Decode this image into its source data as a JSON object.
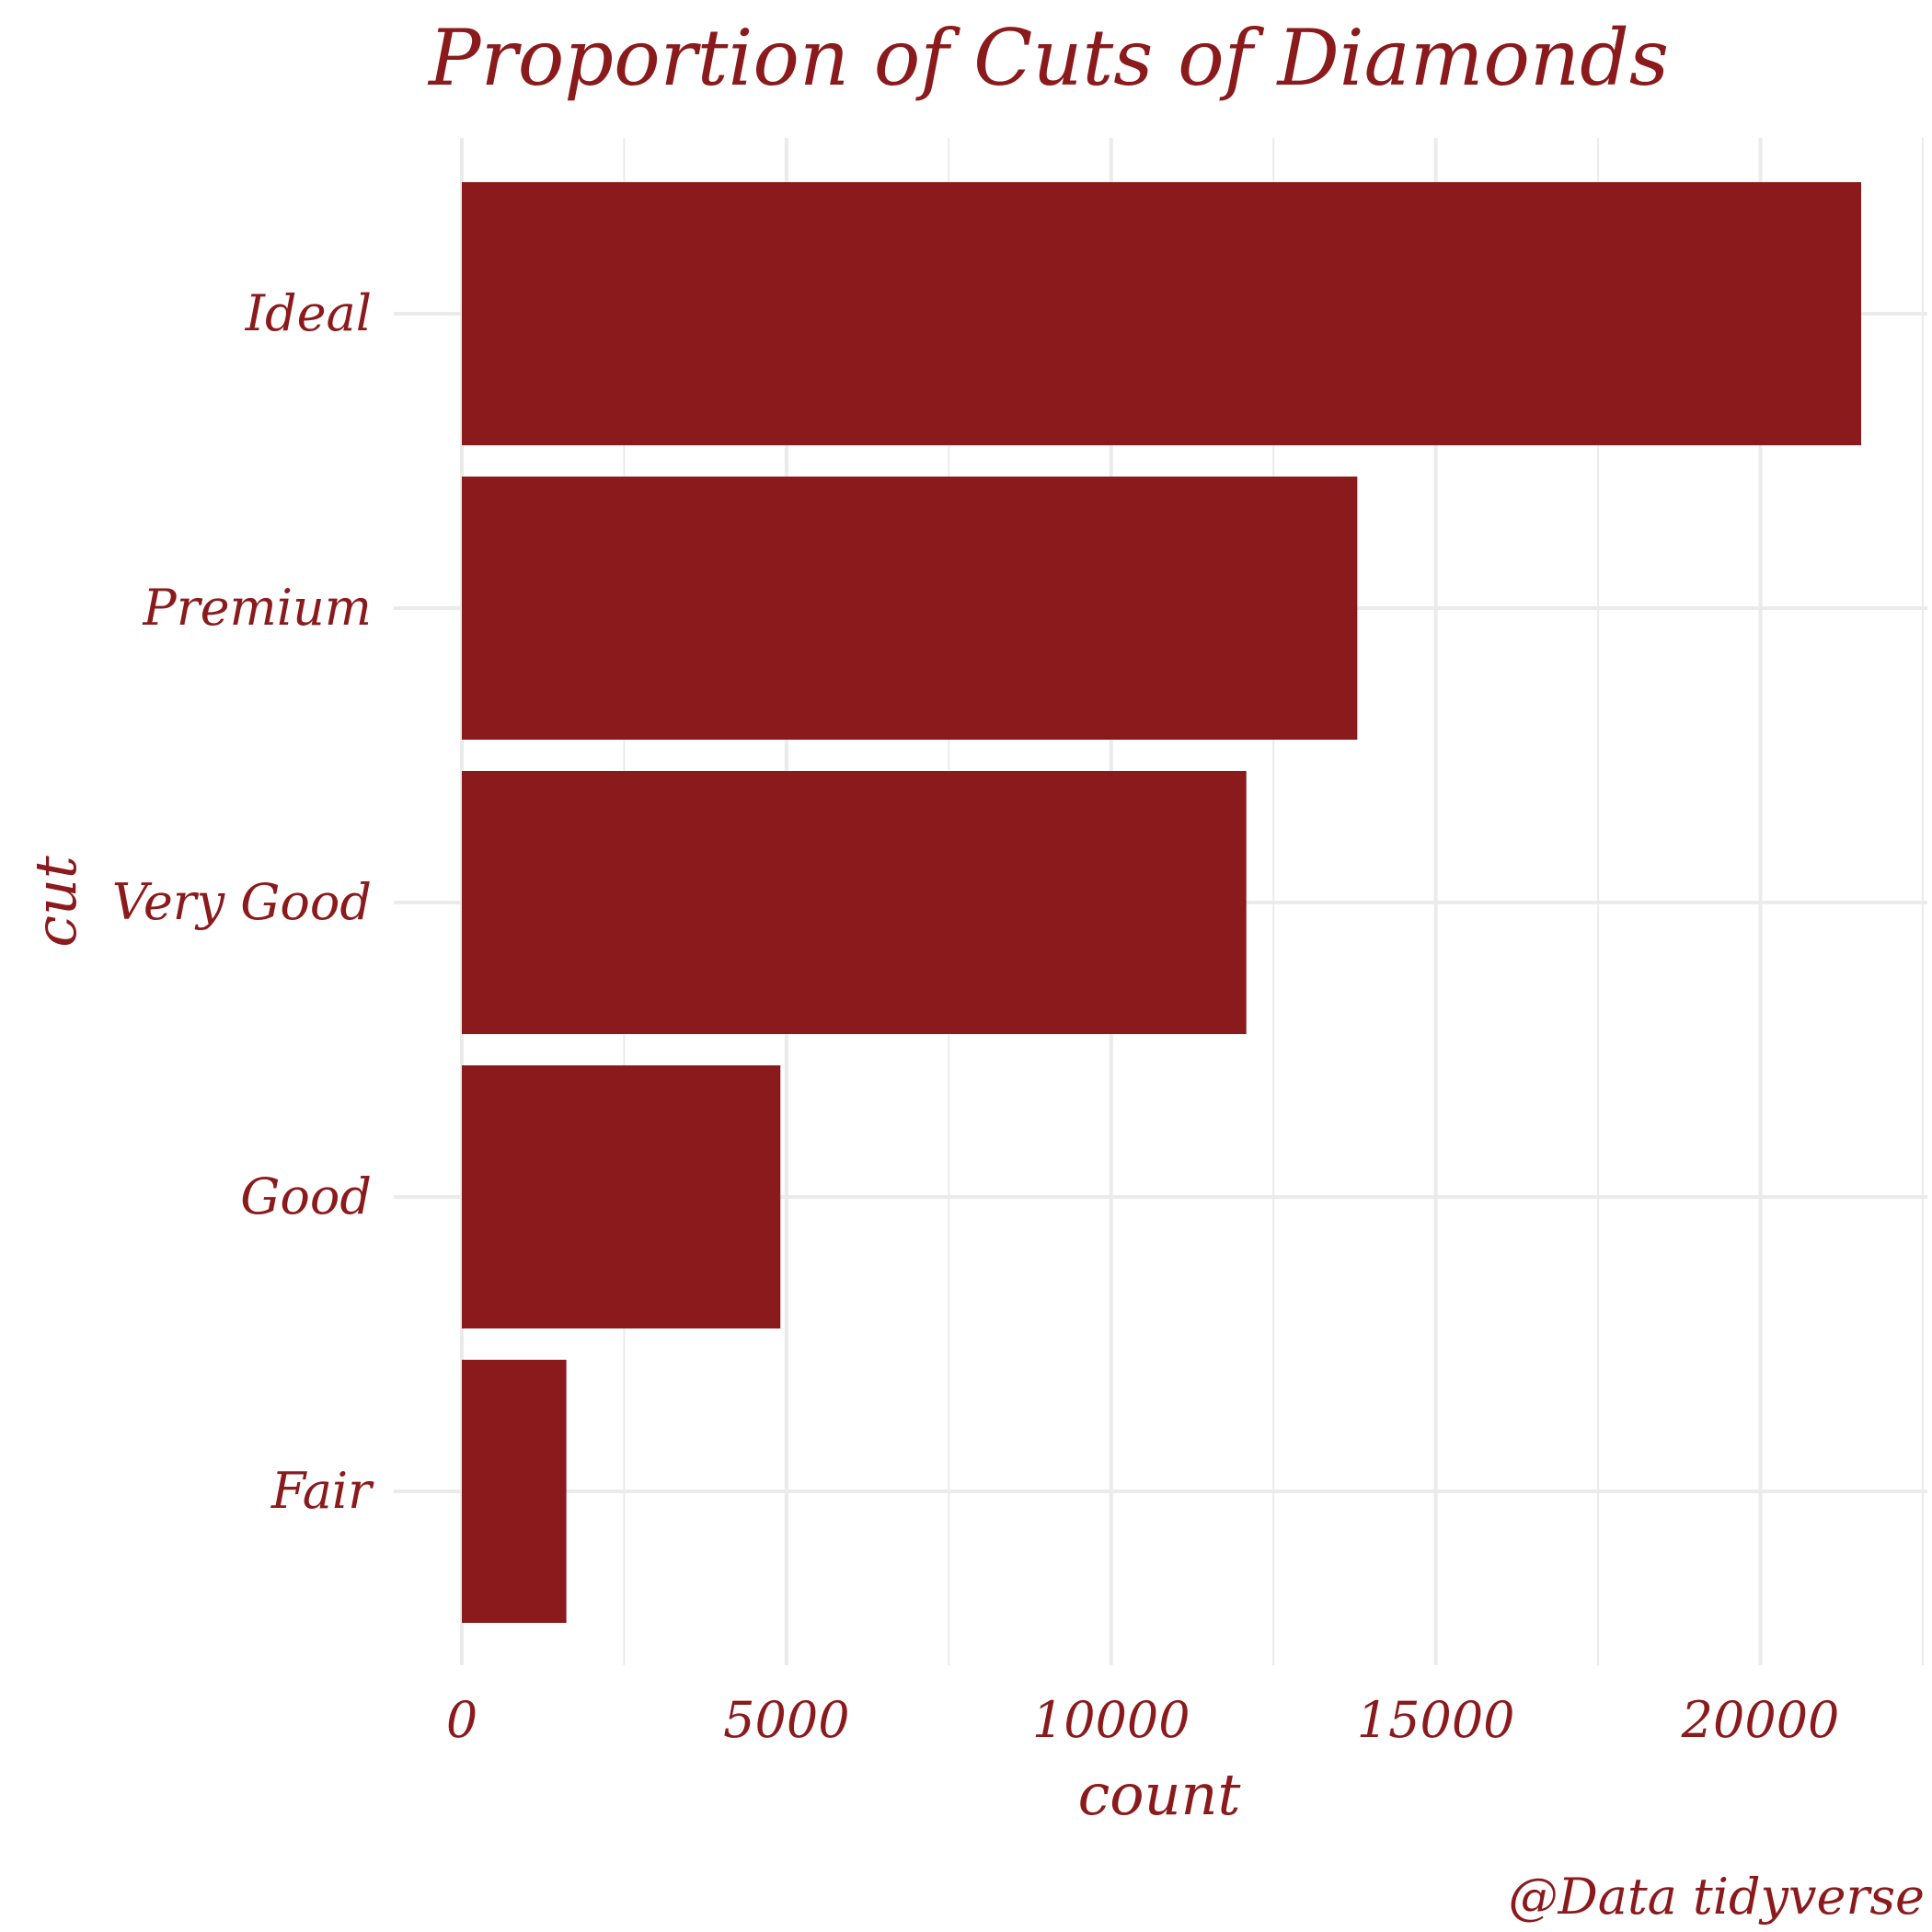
{
  "colors": {
    "bar": "#8B1A1C",
    "text": "#8B1A1C",
    "grid": "#EBEBEB",
    "background": "#FFFFFF"
  },
  "chart_data": {
    "type": "bar",
    "orientation": "horizontal",
    "title": "Proportion of Cuts of Diamonds",
    "xlabel": "count",
    "ylabel": "cut",
    "caption": "@Data tidyverse",
    "categories": [
      "Ideal",
      "Premium",
      "Very Good",
      "Good",
      "Fair"
    ],
    "values": [
      21551,
      13791,
      12082,
      4906,
      1610
    ],
    "xlim": [
      0,
      22628
    ],
    "xticks": [
      0,
      5000,
      10000,
      15000,
      20000
    ],
    "xtick_labels": [
      "0",
      "5000",
      "10000",
      "15000",
      "20000"
    ],
    "grid": true,
    "legend": "none"
  }
}
